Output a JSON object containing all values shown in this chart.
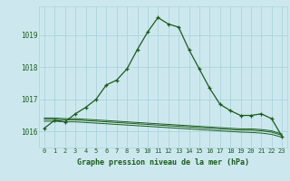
{
  "title": "Graphe pression niveau de la mer (hPa)",
  "bg_color": "#cce8ee",
  "grid_color": "#aad4dc",
  "line_color": "#1a5c1a",
  "x_ticks": [
    0,
    1,
    2,
    3,
    4,
    5,
    6,
    7,
    8,
    9,
    10,
    11,
    12,
    13,
    14,
    15,
    16,
    17,
    18,
    19,
    20,
    21,
    22,
    23
  ],
  "ylim": [
    1015.5,
    1019.9
  ],
  "yticks": [
    1016,
    1017,
    1018,
    1019
  ],
  "main_series": [
    1016.1,
    1016.35,
    1016.3,
    1016.55,
    1016.75,
    1017.0,
    1017.45,
    1017.6,
    1017.95,
    1018.55,
    1019.1,
    1019.55,
    1019.35,
    1019.25,
    1018.55,
    1017.95,
    1017.35,
    1016.85,
    1016.65,
    1016.5,
    1016.5,
    1016.55,
    1016.4,
    1015.85
  ],
  "flat1": [
    1016.42,
    1016.42,
    1016.4,
    1016.4,
    1016.38,
    1016.36,
    1016.34,
    1016.32,
    1016.3,
    1016.28,
    1016.26,
    1016.24,
    1016.22,
    1016.2,
    1016.18,
    1016.16,
    1016.14,
    1016.12,
    1016.1,
    1016.08,
    1016.08,
    1016.06,
    1016.02,
    1015.92
  ],
  "flat2": [
    1016.38,
    1016.38,
    1016.36,
    1016.36,
    1016.34,
    1016.32,
    1016.3,
    1016.28,
    1016.26,
    1016.24,
    1016.22,
    1016.2,
    1016.18,
    1016.16,
    1016.14,
    1016.12,
    1016.1,
    1016.08,
    1016.06,
    1016.04,
    1016.04,
    1016.02,
    1015.98,
    1015.88
  ],
  "flat3": [
    1016.32,
    1016.32,
    1016.3,
    1016.3,
    1016.28,
    1016.26,
    1016.24,
    1016.22,
    1016.2,
    1016.18,
    1016.16,
    1016.14,
    1016.12,
    1016.1,
    1016.08,
    1016.06,
    1016.04,
    1016.02,
    1016.0,
    1015.98,
    1015.97,
    1015.95,
    1015.91,
    1015.82
  ]
}
